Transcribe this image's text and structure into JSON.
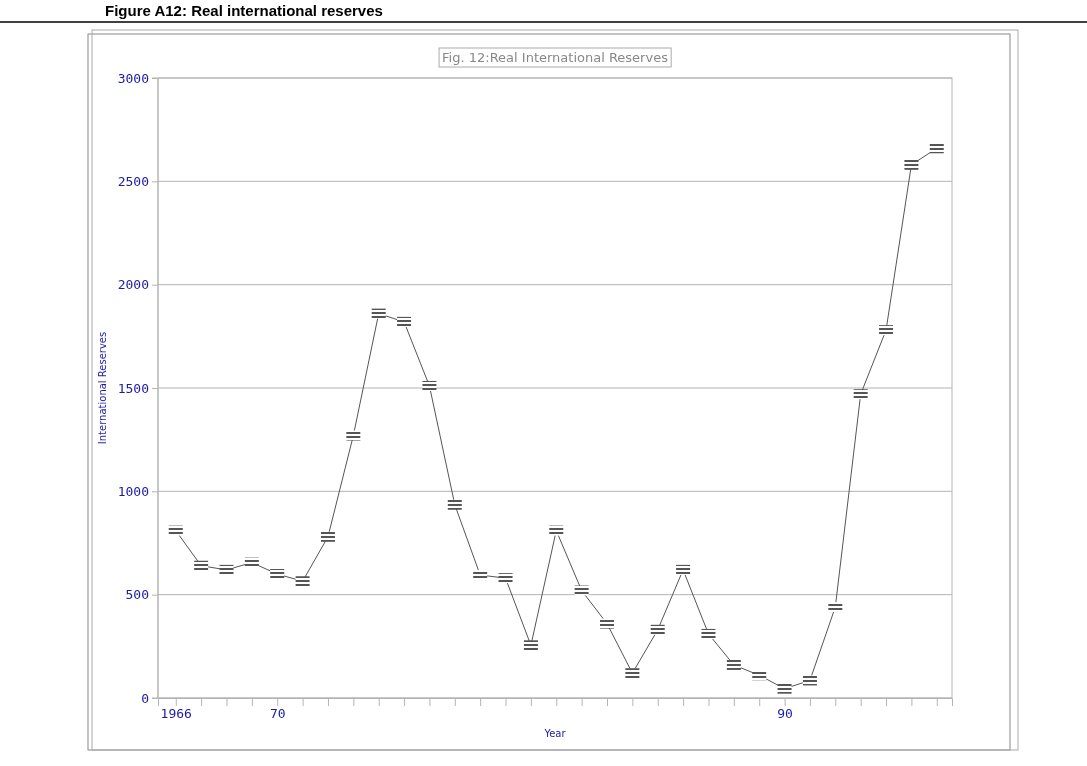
{
  "chart_data": {
    "type": "line",
    "title": "Figure A12: Real international reserves",
    "subtitle": "Fig. 12:Real International Reserves",
    "xlabel": "Year",
    "ylabel": "International Reserves",
    "x": [
      1966,
      1967,
      1968,
      1969,
      1970,
      1971,
      1972,
      1973,
      1974,
      1975,
      1976,
      1977,
      1978,
      1979,
      1980,
      1981,
      1982,
      1983,
      1984,
      1985,
      1986,
      1987,
      1988,
      1989,
      1990,
      1991,
      1992,
      1993,
      1994,
      1995,
      1996
    ],
    "series": [
      {
        "color": "#555555",
        "values": [
          810,
          640,
          620,
          655,
          600,
          565,
          780,
          1270,
          1860,
          1820,
          1510,
          935,
          595,
          580,
          255,
          810,
          520,
          360,
          120,
          330,
          620,
          310,
          160,
          110,
          45,
          85,
          440,
          1470,
          1780,
          2580,
          2660
        ]
      }
    ],
    "xlim": [
      1965.3,
      1996.6
    ],
    "xticks": [
      {
        "value": 1966,
        "label": "1966"
      },
      {
        "value": 1967,
        "label": null
      },
      {
        "value": 1968,
        "label": null
      },
      {
        "value": 1969,
        "label": null
      },
      {
        "value": 1970,
        "label": "70"
      },
      {
        "value": 1971,
        "label": null
      },
      {
        "value": 1972,
        "label": null
      },
      {
        "value": 1973,
        "label": null
      },
      {
        "value": 1974,
        "label": null
      },
      {
        "value": 1975,
        "label": null
      },
      {
        "value": 1976,
        "label": null
      },
      {
        "value": 1977,
        "label": null
      },
      {
        "value": 1978,
        "label": null
      },
      {
        "value": 1979,
        "label": null
      },
      {
        "value": 1980,
        "label": null
      },
      {
        "value": 1981,
        "label": null
      },
      {
        "value": 1982,
        "label": null
      },
      {
        "value": 1983,
        "label": null
      },
      {
        "value": 1984,
        "label": null
      },
      {
        "value": 1985,
        "label": null
      },
      {
        "value": 1986,
        "label": null
      },
      {
        "value": 1987,
        "label": null
      },
      {
        "value": 1988,
        "label": null
      },
      {
        "value": 1989,
        "label": null
      },
      {
        "value": 1990,
        "label": "90"
      },
      {
        "value": 1991,
        "label": null
      },
      {
        "value": 1992,
        "label": null
      },
      {
        "value": 1993,
        "label": null
      },
      {
        "value": 1994,
        "label": null
      },
      {
        "value": 1995,
        "label": null
      },
      {
        "value": 1996,
        "label": null
      }
    ],
    "ylim": [
      0,
      3000
    ],
    "yticks": [
      0,
      500,
      1000,
      1500,
      2000,
      2500,
      3000
    ],
    "grid": "y",
    "marker": "square",
    "line_style": "solid"
  }
}
